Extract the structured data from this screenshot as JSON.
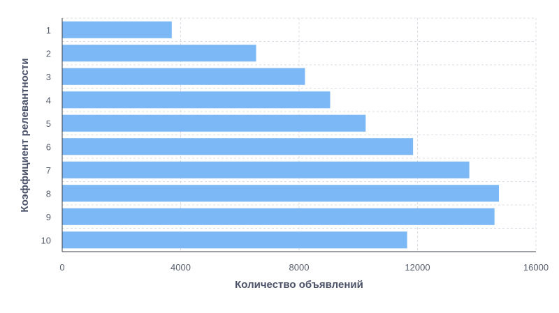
{
  "chart_data": {
    "type": "bar",
    "orientation": "horizontal",
    "categories": [
      "1",
      "2",
      "3",
      "4",
      "5",
      "6",
      "7",
      "8",
      "9",
      "10"
    ],
    "values": [
      3700,
      6550,
      8200,
      9050,
      10250,
      11850,
      13750,
      14750,
      14600,
      11650
    ],
    "xlabel": "Количество объявлений",
    "ylabel": "Коэффициент релевантности",
    "xlim": [
      0,
      16000
    ],
    "x_ticks": [
      "0",
      "4000",
      "8000",
      "12000",
      "16000"
    ],
    "grid": "dashed, both axes",
    "bar_color": "#7cb8f5",
    "grid_color": "#d9dce2",
    "axis_color": "#3c3f47"
  }
}
